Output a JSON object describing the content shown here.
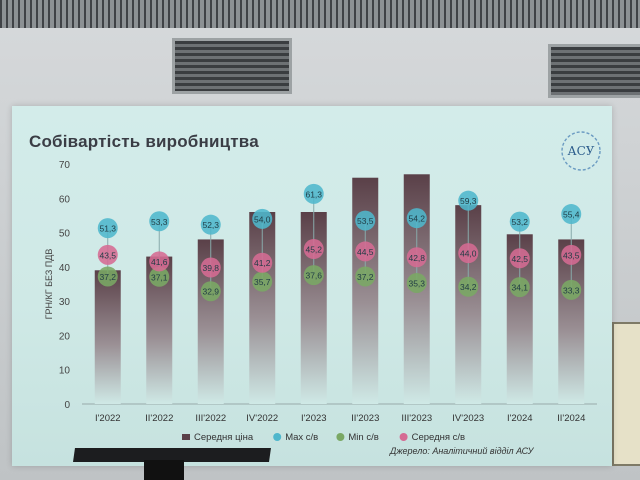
{
  "slide": {
    "title": "Собівартість виробництва",
    "logo_text": "АСУ",
    "source": "Джерело: Аналітичний відділ АСУ"
  },
  "chart_data": {
    "type": "bar",
    "title": "Собівартість виробництва",
    "ylabel": "ГРН/КГ БЕЗ ПДВ",
    "ylim": [
      0,
      70
    ],
    "yticks": [
      0,
      10,
      20,
      30,
      40,
      50,
      60,
      70
    ],
    "categories": [
      "I'2022",
      "II'2022",
      "III'2022",
      "IV'2022",
      "I'2023",
      "II'2023",
      "III'2023",
      "IV'2023",
      "I'2024",
      "II'2024"
    ],
    "series": [
      {
        "name": "Середня ціна",
        "kind": "bar",
        "color": "#5a4048",
        "values": [
          39,
          43,
          48,
          56,
          56,
          66,
          67,
          58,
          49.5,
          48
        ]
      },
      {
        "name": "Max с/в",
        "kind": "dot",
        "color": "#4fb7cc",
        "values": [
          51.3,
          53.3,
          52.3,
          54.0,
          61.3,
          53.5,
          54.2,
          59.3,
          53.2,
          55.4
        ],
        "labels": [
          "51,3",
          "53,3",
          "52,3",
          "54,0",
          "61,3",
          "53,5",
          "54,2",
          "59,3",
          "53,2",
          "55,4"
        ]
      },
      {
        "name": "Min с/в",
        "kind": "dot",
        "color": "#7aa864",
        "values": [
          37.2,
          37.1,
          32.9,
          35.7,
          37.6,
          37.2,
          35.3,
          34.2,
          34.1,
          33.3
        ],
        "labels": [
          "37,2",
          "37,1",
          "32,9",
          "35,7",
          "37,6",
          "37,2",
          "35,3",
          "34,2",
          "34,1",
          "33,3"
        ]
      },
      {
        "name": "Середня с/в",
        "kind": "dot",
        "color": "#d56b93",
        "values": [
          43.5,
          41.6,
          39.8,
          41.2,
          45.2,
          44.5,
          42.8,
          44.0,
          42.5,
          43.5
        ],
        "labels": [
          "43,5",
          "41,6",
          "39,8",
          "41,2",
          "45,2",
          "44,5",
          "42,8",
          "44,0",
          "42,5",
          "43,5"
        ]
      }
    ],
    "legend_position": "bottom",
    "grid": false
  }
}
